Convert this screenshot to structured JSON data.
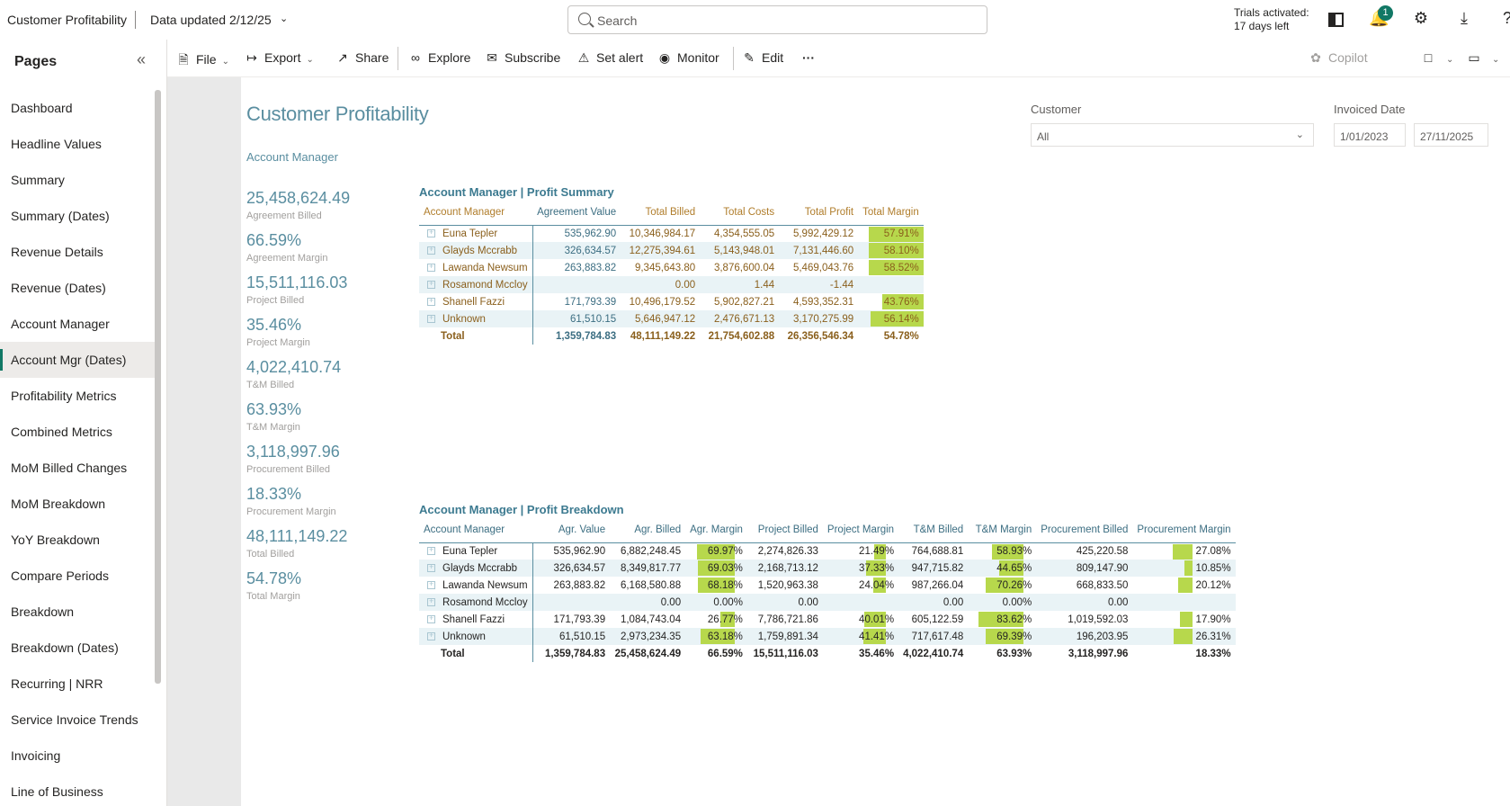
{
  "topbar": {
    "app_name": "Customer Profitability",
    "data_updated": "Data updated 2/12/25",
    "search_placeholder": "Search",
    "trials_line1": "Trials activated:",
    "trials_line2": "17 days left",
    "notification_count": "1"
  },
  "pages_panel": {
    "title": "Pages",
    "items": [
      {
        "label": "Dashboard"
      },
      {
        "label": "Headline Values"
      },
      {
        "label": "Summary"
      },
      {
        "label": "Summary (Dates)"
      },
      {
        "label": "Revenue Details"
      },
      {
        "label": "Revenue (Dates)"
      },
      {
        "label": "Account Manager"
      },
      {
        "label": "Account Mgr (Dates)",
        "selected": true
      },
      {
        "label": "Profitability Metrics"
      },
      {
        "label": "Combined Metrics"
      },
      {
        "label": "MoM Billed Changes"
      },
      {
        "label": "MoM Breakdown"
      },
      {
        "label": "YoY Breakdown"
      },
      {
        "label": "Compare Periods"
      },
      {
        "label": "Breakdown"
      },
      {
        "label": "Breakdown (Dates)"
      },
      {
        "label": "Recurring | NRR"
      },
      {
        "label": "Service Invoice Trends"
      },
      {
        "label": "Invoicing"
      },
      {
        "label": "Line of Business"
      }
    ]
  },
  "commandbar": {
    "file": "File",
    "export": "Export",
    "share": "Share",
    "explore": "Explore",
    "subscribe": "Subscribe",
    "set_alert": "Set alert",
    "monitor": "Monitor",
    "edit": "Edit",
    "more": "···",
    "copilot": "Copilot"
  },
  "report": {
    "title": "Customer Profitability",
    "subtitle": "Account Manager",
    "filters": {
      "customer_label": "Customer",
      "customer_value": "All",
      "date_label": "Invoiced Date",
      "date_from": "1/01/2023",
      "date_to": "27/11/2025"
    },
    "cards": [
      {
        "value": "25,458,624.49",
        "label": "Agreement Billed"
      },
      {
        "value": "66.59%",
        "label": "Agreement Margin"
      },
      {
        "value": "15,511,116.03",
        "label": "Project Billed"
      },
      {
        "value": "35.46%",
        "label": "Project Margin"
      },
      {
        "value": "4,022,410.74",
        "label": "T&M Billed"
      },
      {
        "value": "63.93%",
        "label": "T&M Margin"
      },
      {
        "value": "3,118,997.96",
        "label": "Procurement Billed"
      },
      {
        "value": "18.33%",
        "label": "Procurement Margin"
      },
      {
        "value": "48,111,149.22",
        "label": "Total Billed"
      },
      {
        "value": "54.78%",
        "label": "Total Margin"
      }
    ],
    "summary_table": {
      "title": "Account Manager | Profit Summary",
      "headers": [
        "Account Manager",
        "Agreement Value",
        "Total Billed",
        "Total Costs",
        "Total Profit",
        "Total Margin"
      ],
      "rows": [
        {
          "name": "Euna Tepler",
          "cells": [
            "535,962.90",
            "10,346,984.17",
            "4,354,555.05",
            "5,992,429.12",
            "57.91%"
          ],
          "margin_pct": 57.91
        },
        {
          "name": "Glayds Mccrabb",
          "cells": [
            "326,634.57",
            "12,275,394.61",
            "5,143,948.01",
            "7,131,446.60",
            "58.10%"
          ],
          "margin_pct": 58.1
        },
        {
          "name": "Lawanda Newsum",
          "cells": [
            "263,883.82",
            "9,345,643.80",
            "3,876,600.04",
            "5,469,043.76",
            "58.52%"
          ],
          "margin_pct": 58.52
        },
        {
          "name": "Rosamond Mccloy",
          "cells": [
            "",
            "0.00",
            "1.44",
            "-1.44",
            ""
          ],
          "margin_pct": 0
        },
        {
          "name": "Shanell Fazzi",
          "cells": [
            "171,793.39",
            "10,496,179.52",
            "5,902,827.21",
            "4,593,352.31",
            "43.76%"
          ],
          "margin_pct": 43.76
        },
        {
          "name": "Unknown",
          "cells": [
            "61,510.15",
            "5,646,947.12",
            "2,476,671.13",
            "3,170,275.99",
            "56.14%"
          ],
          "margin_pct": 56.14
        }
      ],
      "total": {
        "name": "Total",
        "cells": [
          "1,359,784.83",
          "48,111,149.22",
          "21,754,602.88",
          "26,356,546.34",
          "54.78%"
        ]
      }
    },
    "breakdown_table": {
      "title": "Account Manager | Profit Breakdown",
      "headers": [
        "Account Manager",
        "Agr. Value",
        "Agr. Billed",
        "Agr. Margin",
        "Project Billed",
        "Project Margin",
        "T&M Billed",
        "T&M Margin",
        "Procurement Billed",
        "Procurement Margin"
      ],
      "rows": [
        {
          "name": "Euna Tepler",
          "cells": [
            "535,962.90",
            "6,882,248.45",
            "69.97%",
            "2,274,826.33",
            "21.49%",
            "764,688.81",
            "58.93%",
            "425,220.58",
            "27.08%"
          ],
          "bars": [
            69.97,
            21.49,
            58.93,
            27.08
          ]
        },
        {
          "name": "Glayds Mccrabb",
          "cells": [
            "326,634.57",
            "8,349,817.77",
            "69.03%",
            "2,168,713.12",
            "37.33%",
            "947,715.82",
            "44.65%",
            "809,147.90",
            "10.85%"
          ],
          "bars": [
            69.03,
            37.33,
            44.65,
            10.85
          ]
        },
        {
          "name": "Lawanda Newsum",
          "cells": [
            "263,883.82",
            "6,168,580.88",
            "68.18%",
            "1,520,963.38",
            "24.04%",
            "987,266.04",
            "70.26%",
            "668,833.50",
            "20.12%"
          ],
          "bars": [
            68.18,
            24.04,
            70.26,
            20.12
          ]
        },
        {
          "name": "Rosamond Mccloy",
          "cells": [
            "",
            "0.00",
            "0.00%",
            "0.00",
            "",
            "0.00",
            "0.00%",
            "0.00",
            ""
          ],
          "bars": [
            0,
            0,
            0,
            0
          ]
        },
        {
          "name": "Shanell Fazzi",
          "cells": [
            "171,793.39",
            "1,084,743.04",
            "26.77%",
            "7,786,721.86",
            "40.01%",
            "605,122.59",
            "83.62%",
            "1,019,592.03",
            "17.90%"
          ],
          "bars": [
            26.77,
            40.01,
            83.62,
            17.9
          ]
        },
        {
          "name": "Unknown",
          "cells": [
            "61,510.15",
            "2,973,234.35",
            "63.18%",
            "1,759,891.34",
            "41.41%",
            "717,617.48",
            "69.39%",
            "196,203.95",
            "26.31%"
          ],
          "bars": [
            63.18,
            41.41,
            69.39,
            26.31
          ]
        }
      ],
      "total": {
        "name": "Total",
        "cells": [
          "1,359,784.83",
          "25,458,624.49",
          "66.59%",
          "15,511,116.03",
          "35.46%",
          "4,022,410.74",
          "63.93%",
          "3,118,997.96",
          "18.33%"
        ]
      }
    }
  }
}
